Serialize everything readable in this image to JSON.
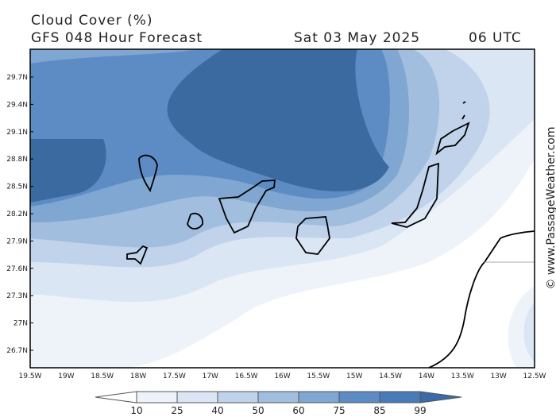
{
  "header": {
    "title": "Cloud Cover (%)",
    "subtitle": "GFS 048 Hour Forecast",
    "date": "Sat 03 May 2025",
    "time": "06 UTC"
  },
  "map": {
    "lat_labels": [
      "29.7N",
      "29.4N",
      "29.1N",
      "28.8N",
      "28.5N",
      "28.2N",
      "27.9N",
      "27.6N",
      "27.3N",
      "27N",
      "26.7N"
    ],
    "lon_labels": [
      "19.5W",
      "19W",
      "18.5W",
      "18W",
      "17.5W",
      "17W",
      "16.5W",
      "16W",
      "15.5W",
      "15W",
      "14.5W",
      "14W",
      "13.5W",
      "13W",
      "12.5W"
    ]
  },
  "legend": {
    "levels": [
      10,
      25,
      40,
      50,
      60,
      75,
      85,
      99
    ],
    "colors": [
      "#ffffff",
      "#eef3fa",
      "#dbe6f4",
      "#c0d3ea",
      "#a2bedf",
      "#80a6d2",
      "#5d8cc4",
      "#4a7bb9",
      "#3a6aa8"
    ]
  },
  "credit": "© www.PassageWeather.com"
}
